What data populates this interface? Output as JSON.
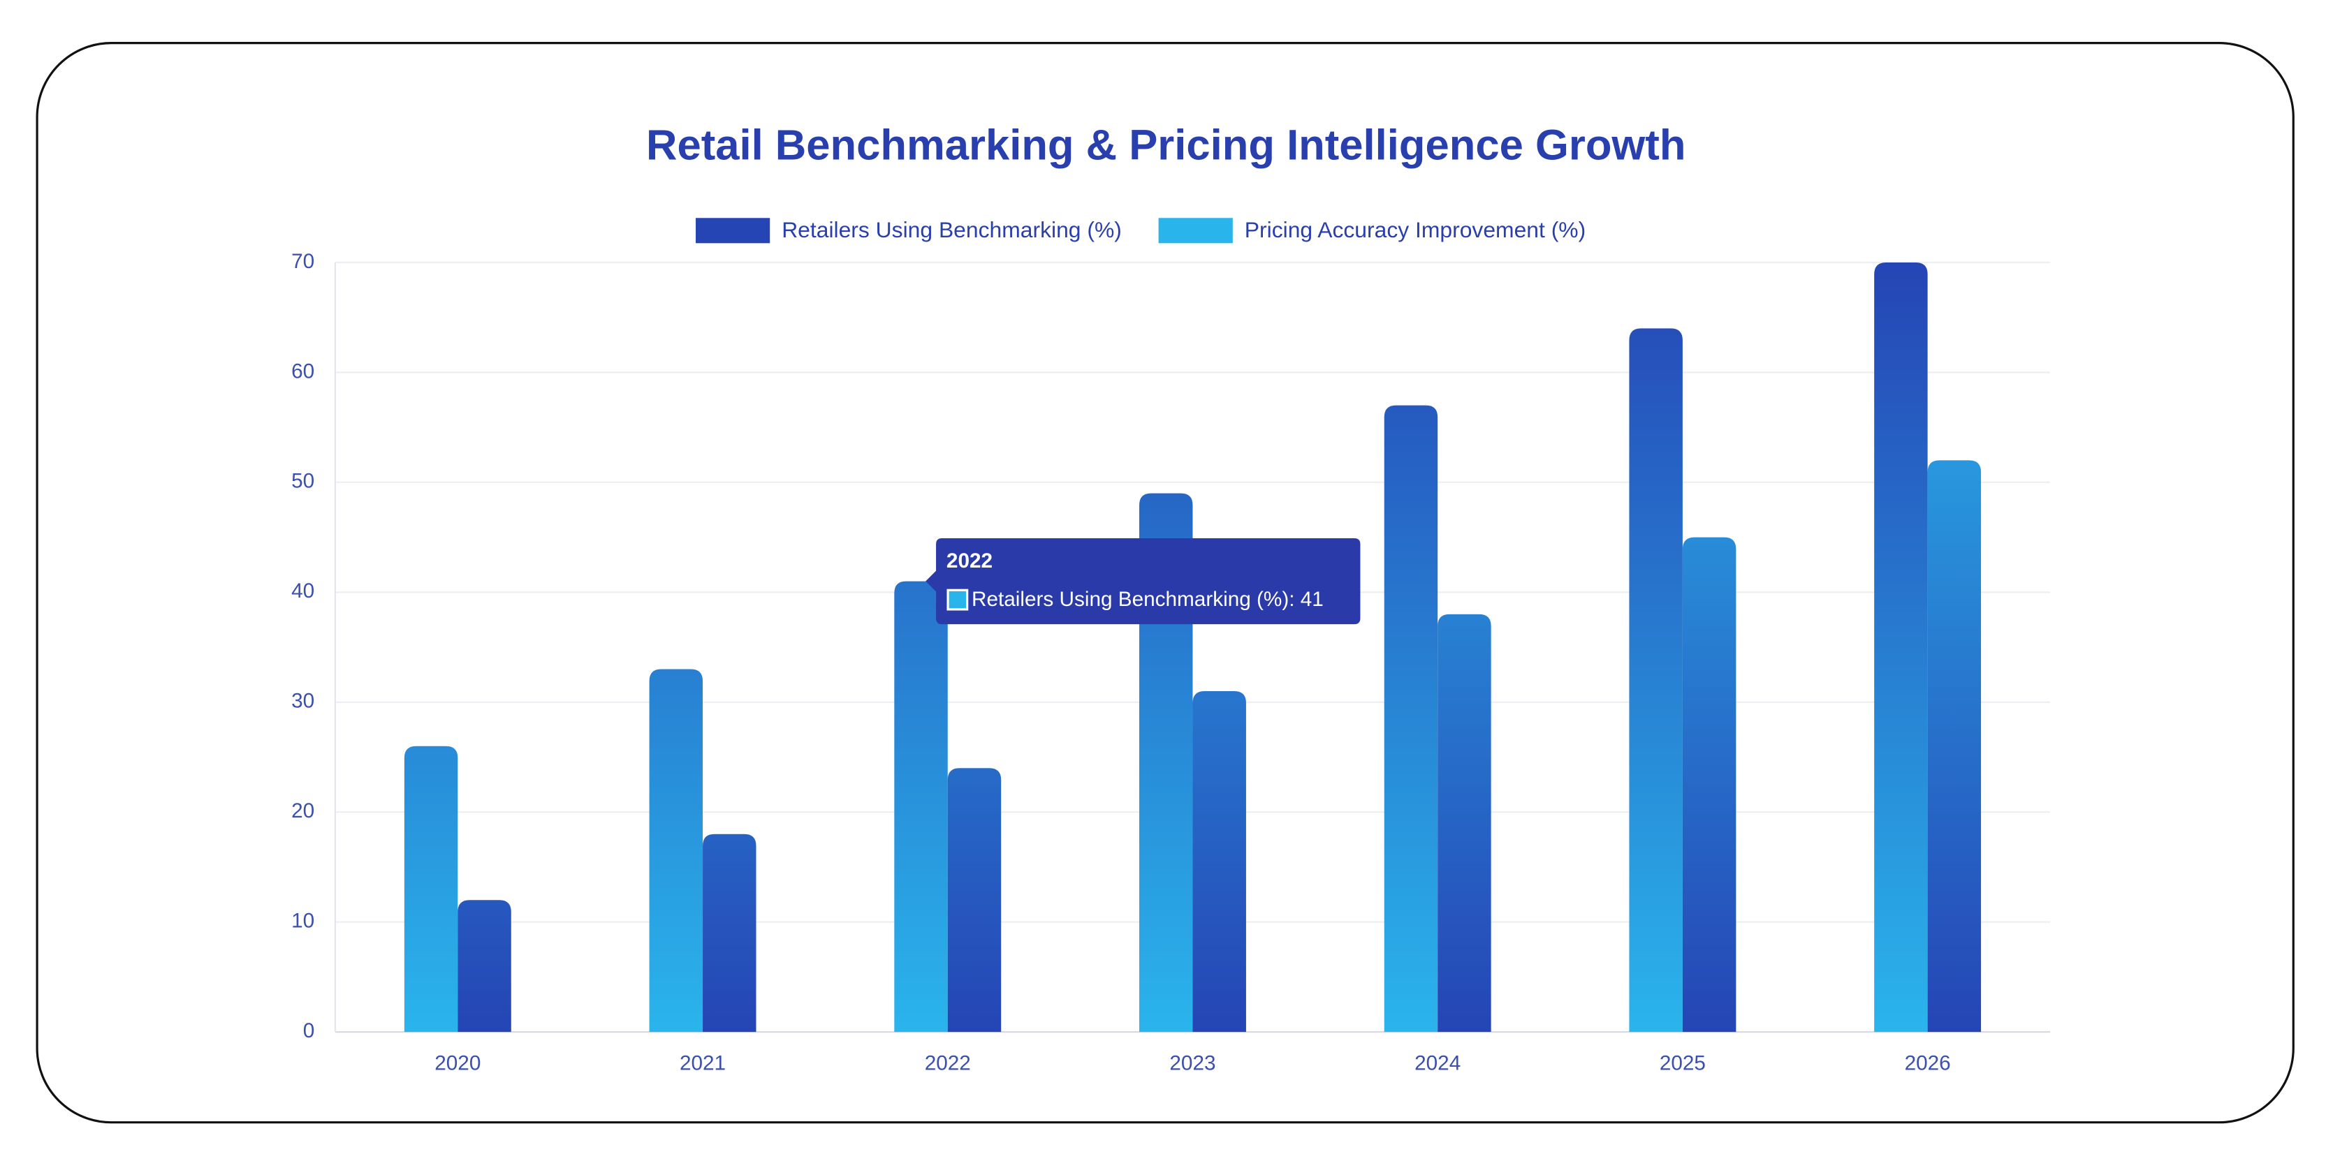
{
  "chart_data": {
    "type": "bar",
    "title": "Retail Benchmarking & Pricing Intelligence Growth",
    "categories": [
      "2020",
      "2021",
      "2022",
      "2023",
      "2024",
      "2025",
      "2026"
    ],
    "series": [
      {
        "name": "Retailers Using Benchmarking (%)",
        "color": "#2545b5",
        "values": [
          26,
          33,
          41,
          49,
          57,
          64,
          70
        ]
      },
      {
        "name": "Pricing Accuracy Improvement (%)",
        "color": "#2ab4ec",
        "values": [
          12,
          18,
          24,
          31,
          38,
          45,
          52
        ]
      }
    ],
    "ylim": [
      0,
      70
    ],
    "yticks": [
      0,
      10,
      20,
      30,
      40,
      50,
      60,
      70
    ],
    "grid": true,
    "legend": "top",
    "tooltip": {
      "title": "2022",
      "text": "Retailers Using Benchmarking (%): 41"
    }
  }
}
